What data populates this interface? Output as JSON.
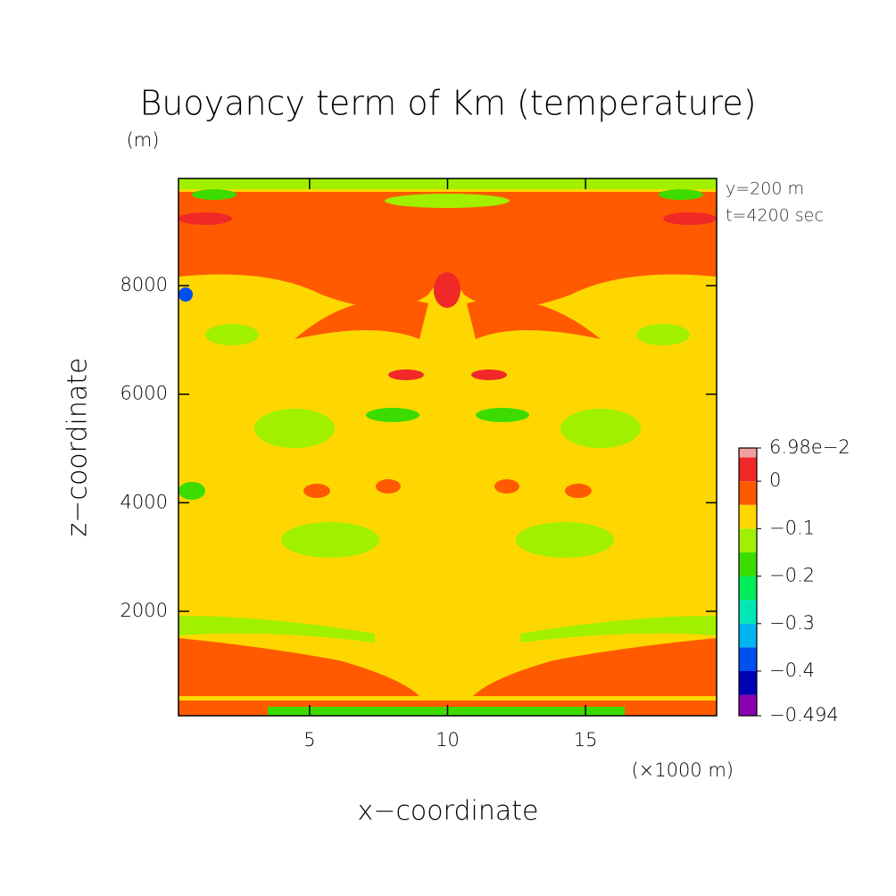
{
  "chart_data": {
    "type": "contour",
    "title": "Buoyancy term of Km (temperature)",
    "y_unit": "(m)",
    "y_label": "z−coordinate",
    "x_label": "x−coordinate",
    "x_unit": "(×1000 m)",
    "annotations": [
      "y=200 m",
      "t=4200 sec"
    ],
    "xlim": [
      0.25,
      19.75
    ],
    "xticks": [
      5,
      10,
      15
    ],
    "ylim": [
      75,
      9975
    ],
    "yticks": [
      2000,
      4000,
      6000,
      8000
    ],
    "colorbar": {
      "lim": [
        -0.494,
        0.0698
      ],
      "ticks": [
        {
          "value": 0.0698,
          "label": "6.98e−2"
        },
        0,
        {
          "value": -0.1,
          "label": "−0.1"
        },
        {
          "value": -0.2,
          "label": "−0.2"
        },
        {
          "value": -0.3,
          "label": "−0.3"
        },
        {
          "value": -0.4,
          "label": "−0.4"
        },
        {
          "value": -0.494,
          "label": "−0.494"
        }
      ],
      "levels": [
        -0.494,
        -0.45,
        -0.4,
        -0.35,
        -0.3,
        -0.25,
        -0.2,
        -0.15,
        -0.1,
        -0.05,
        0,
        0.05,
        0.0698
      ],
      "colors": [
        "#8a00b0",
        "#0000b4",
        "#0050f0",
        "#00b4f0",
        "#00e6b4",
        "#00ee5a",
        "#3cdc00",
        "#a0f000",
        "#ffd700",
        "#ff5a00",
        "#f02828",
        "#f0a0a0"
      ]
    }
  }
}
